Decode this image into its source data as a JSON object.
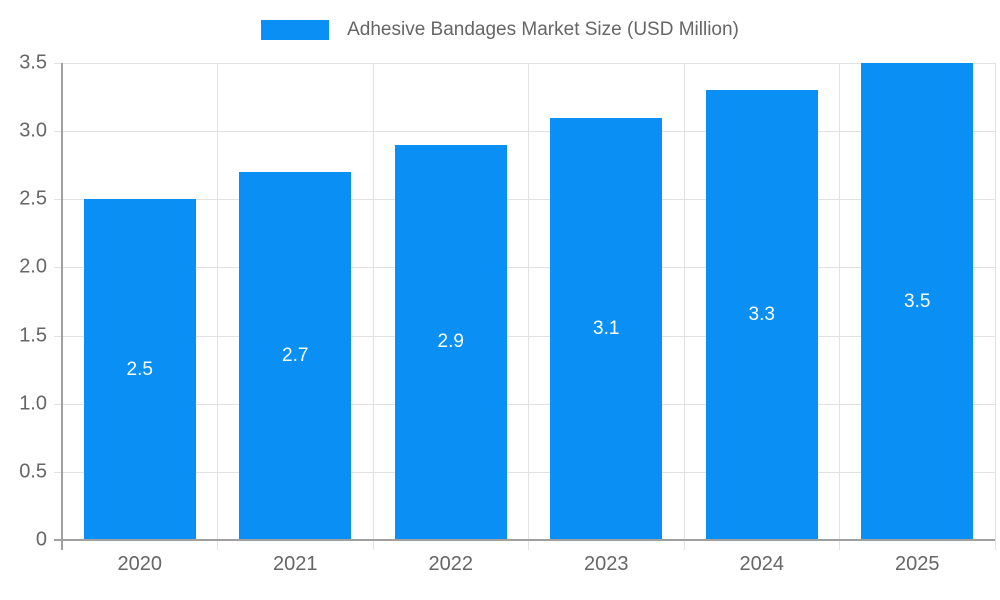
{
  "chart_data": {
    "type": "bar",
    "title": "Adhesive Bandages Market Size (USD Million)",
    "categories": [
      "2020",
      "2021",
      "2022",
      "2023",
      "2024",
      "2025"
    ],
    "series": [
      {
        "name": "Adhesive Bandages Market Size (USD Million)",
        "values": [
          2.5,
          2.7,
          2.9,
          3.1,
          3.3,
          3.5
        ]
      }
    ],
    "bar_value_labels": [
      "2.5",
      "2.7",
      "2.9",
      "3.1",
      "3.3",
      "3.5"
    ],
    "xlabel": "",
    "ylabel": "",
    "ylim": [
      0,
      3.5
    ],
    "ytick_step": 0.5,
    "ytick_labels": [
      "0",
      "0.5",
      "1.0",
      "1.5",
      "2.0",
      "2.5",
      "3.0",
      "3.5"
    ],
    "grid": true,
    "legend_position": "top-center",
    "colors": {
      "bar": "#0a90f5",
      "bar_label": "#ffffff",
      "axis_text": "#666666",
      "gridline": "#e2e2e2",
      "axis_line": "#a0a0a0",
      "background": "#ffffff"
    }
  }
}
